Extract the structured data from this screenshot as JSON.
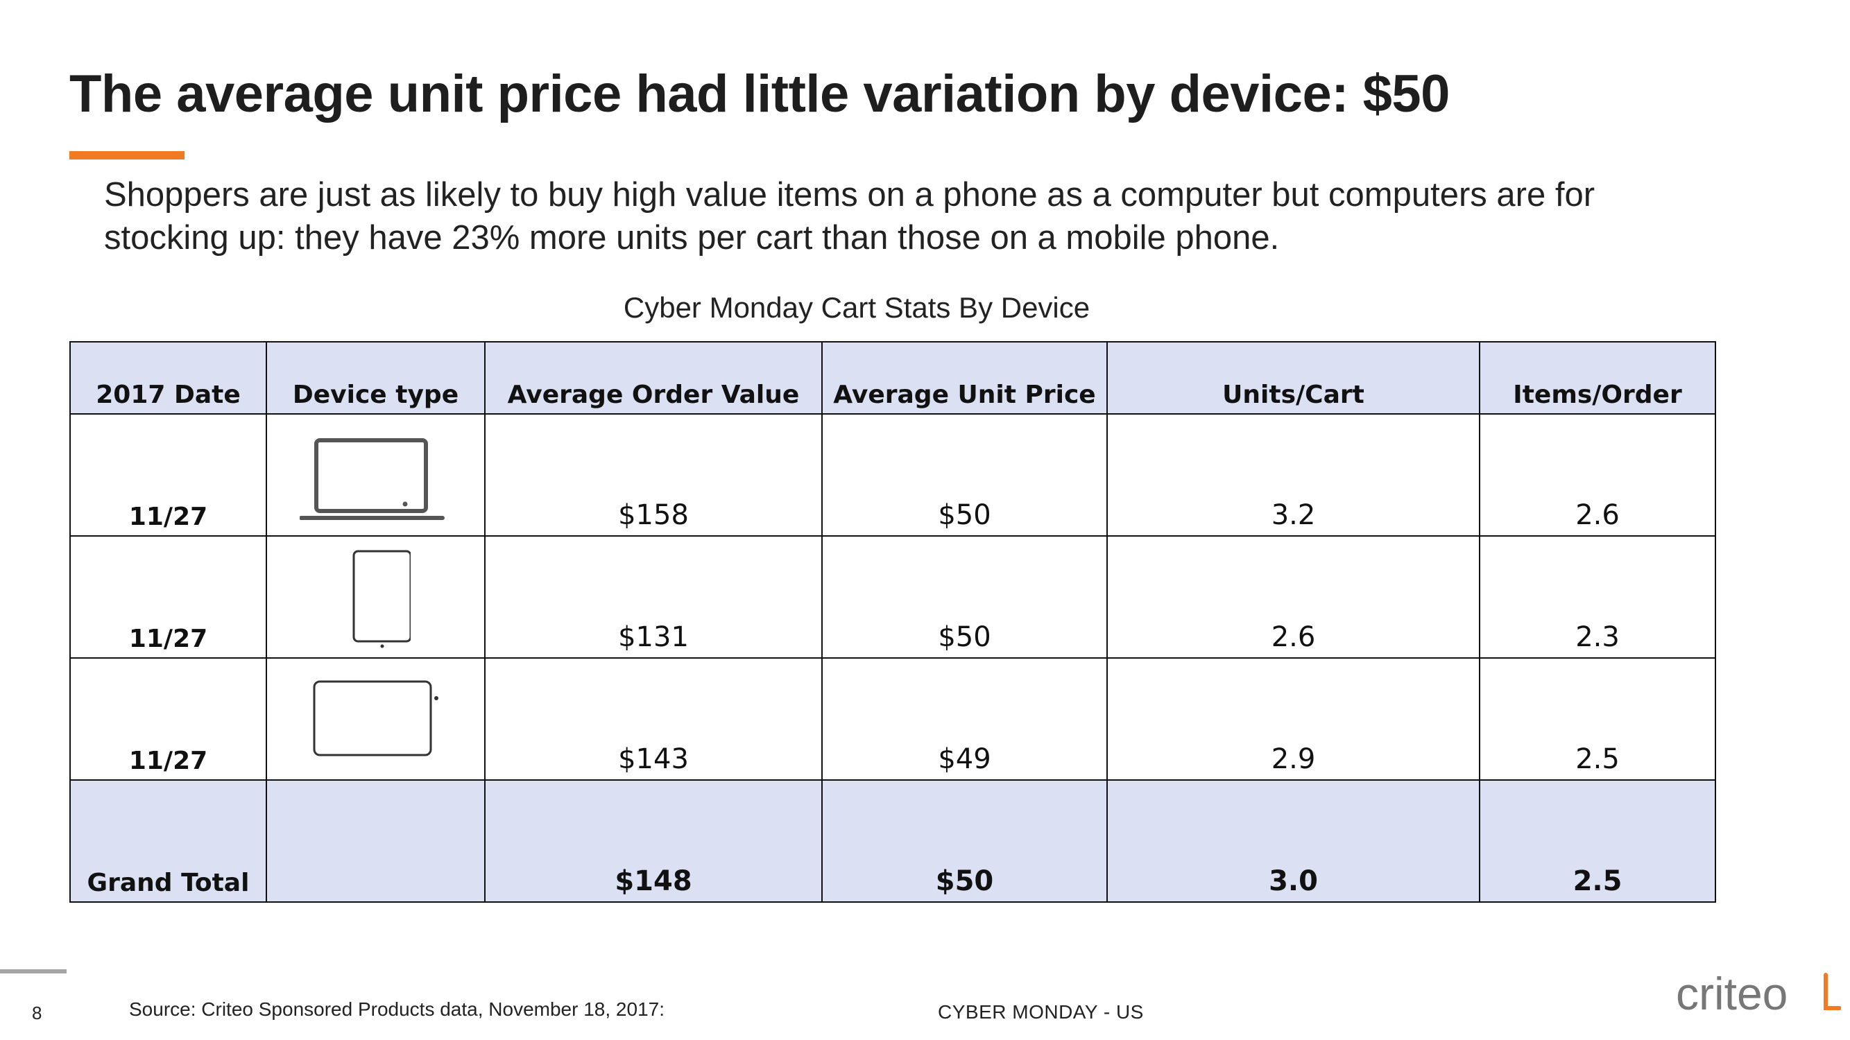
{
  "title": "The average unit price had little variation by device: $50",
  "subtitle": "Shoppers are just as likely to buy high value items on a phone as a computer but computers are for stocking up: they have 23% more units per cart than those on a mobile phone.",
  "table": {
    "caption": "Cyber Monday Cart Stats By Device",
    "headers": [
      "2017 Date",
      "Device type",
      "Average Order Value",
      "Average Unit Price",
      "Units/Cart",
      "Items/Order"
    ],
    "rows": [
      {
        "date": "11/27",
        "device_icon": "laptop-icon",
        "aov": "$158",
        "aup": "$50",
        "units_cart": "3.2",
        "items_order": "2.6"
      },
      {
        "date": "11/27",
        "device_icon": "phone-icon",
        "aov": "$131",
        "aup": "$50",
        "units_cart": "2.6",
        "items_order": "2.3"
      },
      {
        "date": "11/27",
        "device_icon": "tablet-icon",
        "aov": "$143",
        "aup": "$49",
        "units_cart": "2.9",
        "items_order": "2.5"
      }
    ],
    "total": {
      "label": "Grand Total",
      "aov": "$148",
      "aup": "$50",
      "units_cart": "3.0",
      "items_order": "2.5"
    }
  },
  "footer": {
    "page_number": "8",
    "source_label": "Source:",
    "source_text": "Criteo Sponsored Products data, November 18, 2017:",
    "center_text": "CYBER MONDAY - US"
  },
  "logo": {
    "text": "criteo",
    "accent_color": "#f27a22",
    "name": "criteo-logo"
  },
  "colors": {
    "accent": "#f27a22",
    "header_fill": "#dbe1f3",
    "text": "#222222"
  }
}
